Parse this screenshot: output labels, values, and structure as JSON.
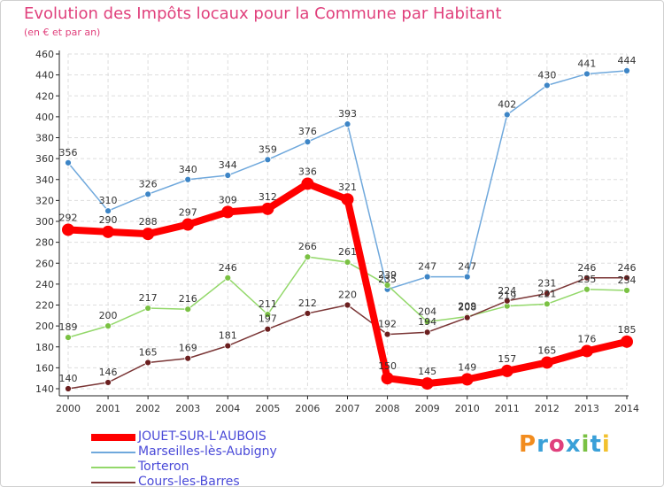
{
  "header": {
    "title": "Evolution des Impôts locaux pour la Commune par Habitant",
    "subtitle": "(en € et par an)"
  },
  "brand": {
    "text": "Proxiti",
    "colors": [
      "#f28c1e",
      "#3aa0d8",
      "#e0407c",
      "#3aa0d8",
      "#7ac143",
      "#3aa0d8",
      "#f2c12e"
    ]
  },
  "chart_data": {
    "type": "line",
    "title": "Evolution des Impôts locaux pour la Commune par Habitant",
    "subtitle": "(en € et par an)",
    "xlabel": "",
    "ylabel": "",
    "x": [
      "2000",
      "2001",
      "2002",
      "2003",
      "2004",
      "2005",
      "2006",
      "2007",
      "2008",
      "2009",
      "2010",
      "2011",
      "2012",
      "2013",
      "2014"
    ],
    "ylim": [
      140,
      460
    ],
    "yticks": [
      140,
      160,
      180,
      200,
      220,
      240,
      260,
      280,
      300,
      320,
      340,
      360,
      380,
      400,
      420,
      440,
      460
    ],
    "grid": true,
    "legend_position": "bottom-left",
    "series": [
      {
        "name": "JOUET-SUR-L'AUBOIS",
        "color": "#ff0000",
        "marker_color": "#ff0000",
        "emphasis": true,
        "values": [
          292,
          290,
          288,
          297,
          309,
          312,
          336,
          321,
          150,
          145,
          149,
          157,
          165,
          176,
          185
        ],
        "labels": [
          "292",
          "290",
          "288",
          "297",
          "309",
          "312",
          "336",
          "321",
          "150",
          "145",
          "149",
          "157",
          "165",
          "176",
          "185"
        ]
      },
      {
        "name": "Marseilles-lès-Aubigny",
        "color": "#6fa8dc",
        "marker_color": "#3d85c6",
        "emphasis": false,
        "values": [
          356,
          310,
          326,
          340,
          344,
          359,
          376,
          393,
          235,
          247,
          247,
          402,
          430,
          441,
          444
        ],
        "labels": [
          "356",
          "310",
          "326",
          "340",
          "344",
          "359",
          "376",
          "393",
          "235",
          "247",
          "247",
          "402",
          "430",
          "441",
          "444"
        ]
      },
      {
        "name": "Torteron",
        "color": "#93d86a",
        "marker_color": "#7ac143",
        "emphasis": false,
        "values": [
          189,
          200,
          217,
          216,
          246,
          211,
          266,
          261,
          239,
          204,
          209,
          219,
          221,
          235,
          234
        ],
        "labels": [
          "189",
          "200",
          "217",
          "216",
          "246",
          "211",
          "266",
          "261",
          "239",
          "204",
          "209",
          "219",
          "221",
          "235",
          "234"
        ]
      },
      {
        "name": "Cours-les-Barres",
        "color": "#7a3535",
        "marker_color": "#6b1f1f",
        "emphasis": false,
        "values": [
          140,
          146,
          165,
          169,
          181,
          197,
          212,
          220,
          192,
          194,
          208,
          224,
          231,
          246,
          246
        ],
        "labels": [
          "140",
          "146",
          "165",
          "169",
          "181",
          "197",
          "212",
          "220",
          "192",
          "194",
          "208",
          "224",
          "231",
          "246",
          "246"
        ]
      }
    ]
  }
}
